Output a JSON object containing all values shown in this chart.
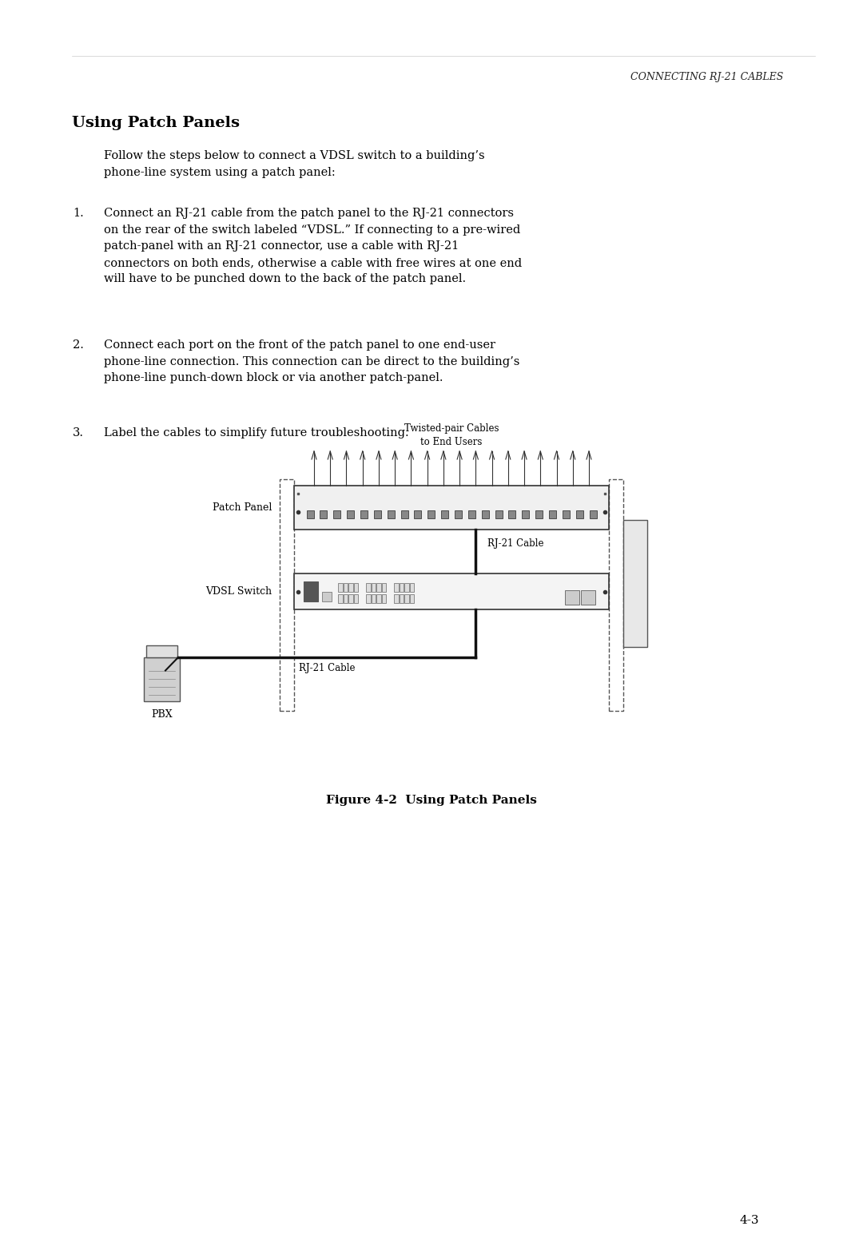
{
  "bg_color": "#ffffff",
  "page_width": 10.8,
  "page_height": 15.7,
  "header_text": "C​ONNECTING RJ-21 C​ABLES",
  "title": "Using Patch Panels",
  "intro_text": "Follow the steps below to connect a VDSL switch to a building’s\nphone-line system using a patch panel:",
  "steps": [
    "Connect an RJ-21 cable from the patch panel to the RJ-21 connectors\non the rear of the switch labeled “VDSL.” If connecting to a pre-wired\npatch-panel with an RJ-21 connector, use a cable with RJ-21\nconnectors on both ends, otherwise a cable with free wires at one end\nwill have to be punched down to the back of the patch panel.",
    "Connect each port on the front of the patch panel to one end-user\nphone-line connection. This connection can be direct to the building’s\nphone-line punch-down block or via another patch-panel.",
    "Label the cables to simplify future troubleshooting."
  ],
  "figure_caption": "Figure 4-2  Using Patch Panels",
  "page_number": "4-3",
  "label_twisted_pair": "Twisted-pair Cables\nto End Users",
  "label_patch_panel": "Patch Panel",
  "label_rj21_cable_top": "RJ-21 Cable",
  "label_vdsl_switch": "VDSL Switch",
  "label_pbx": "PBX",
  "label_rj21_cable_bottom": "RJ-21 Cable"
}
